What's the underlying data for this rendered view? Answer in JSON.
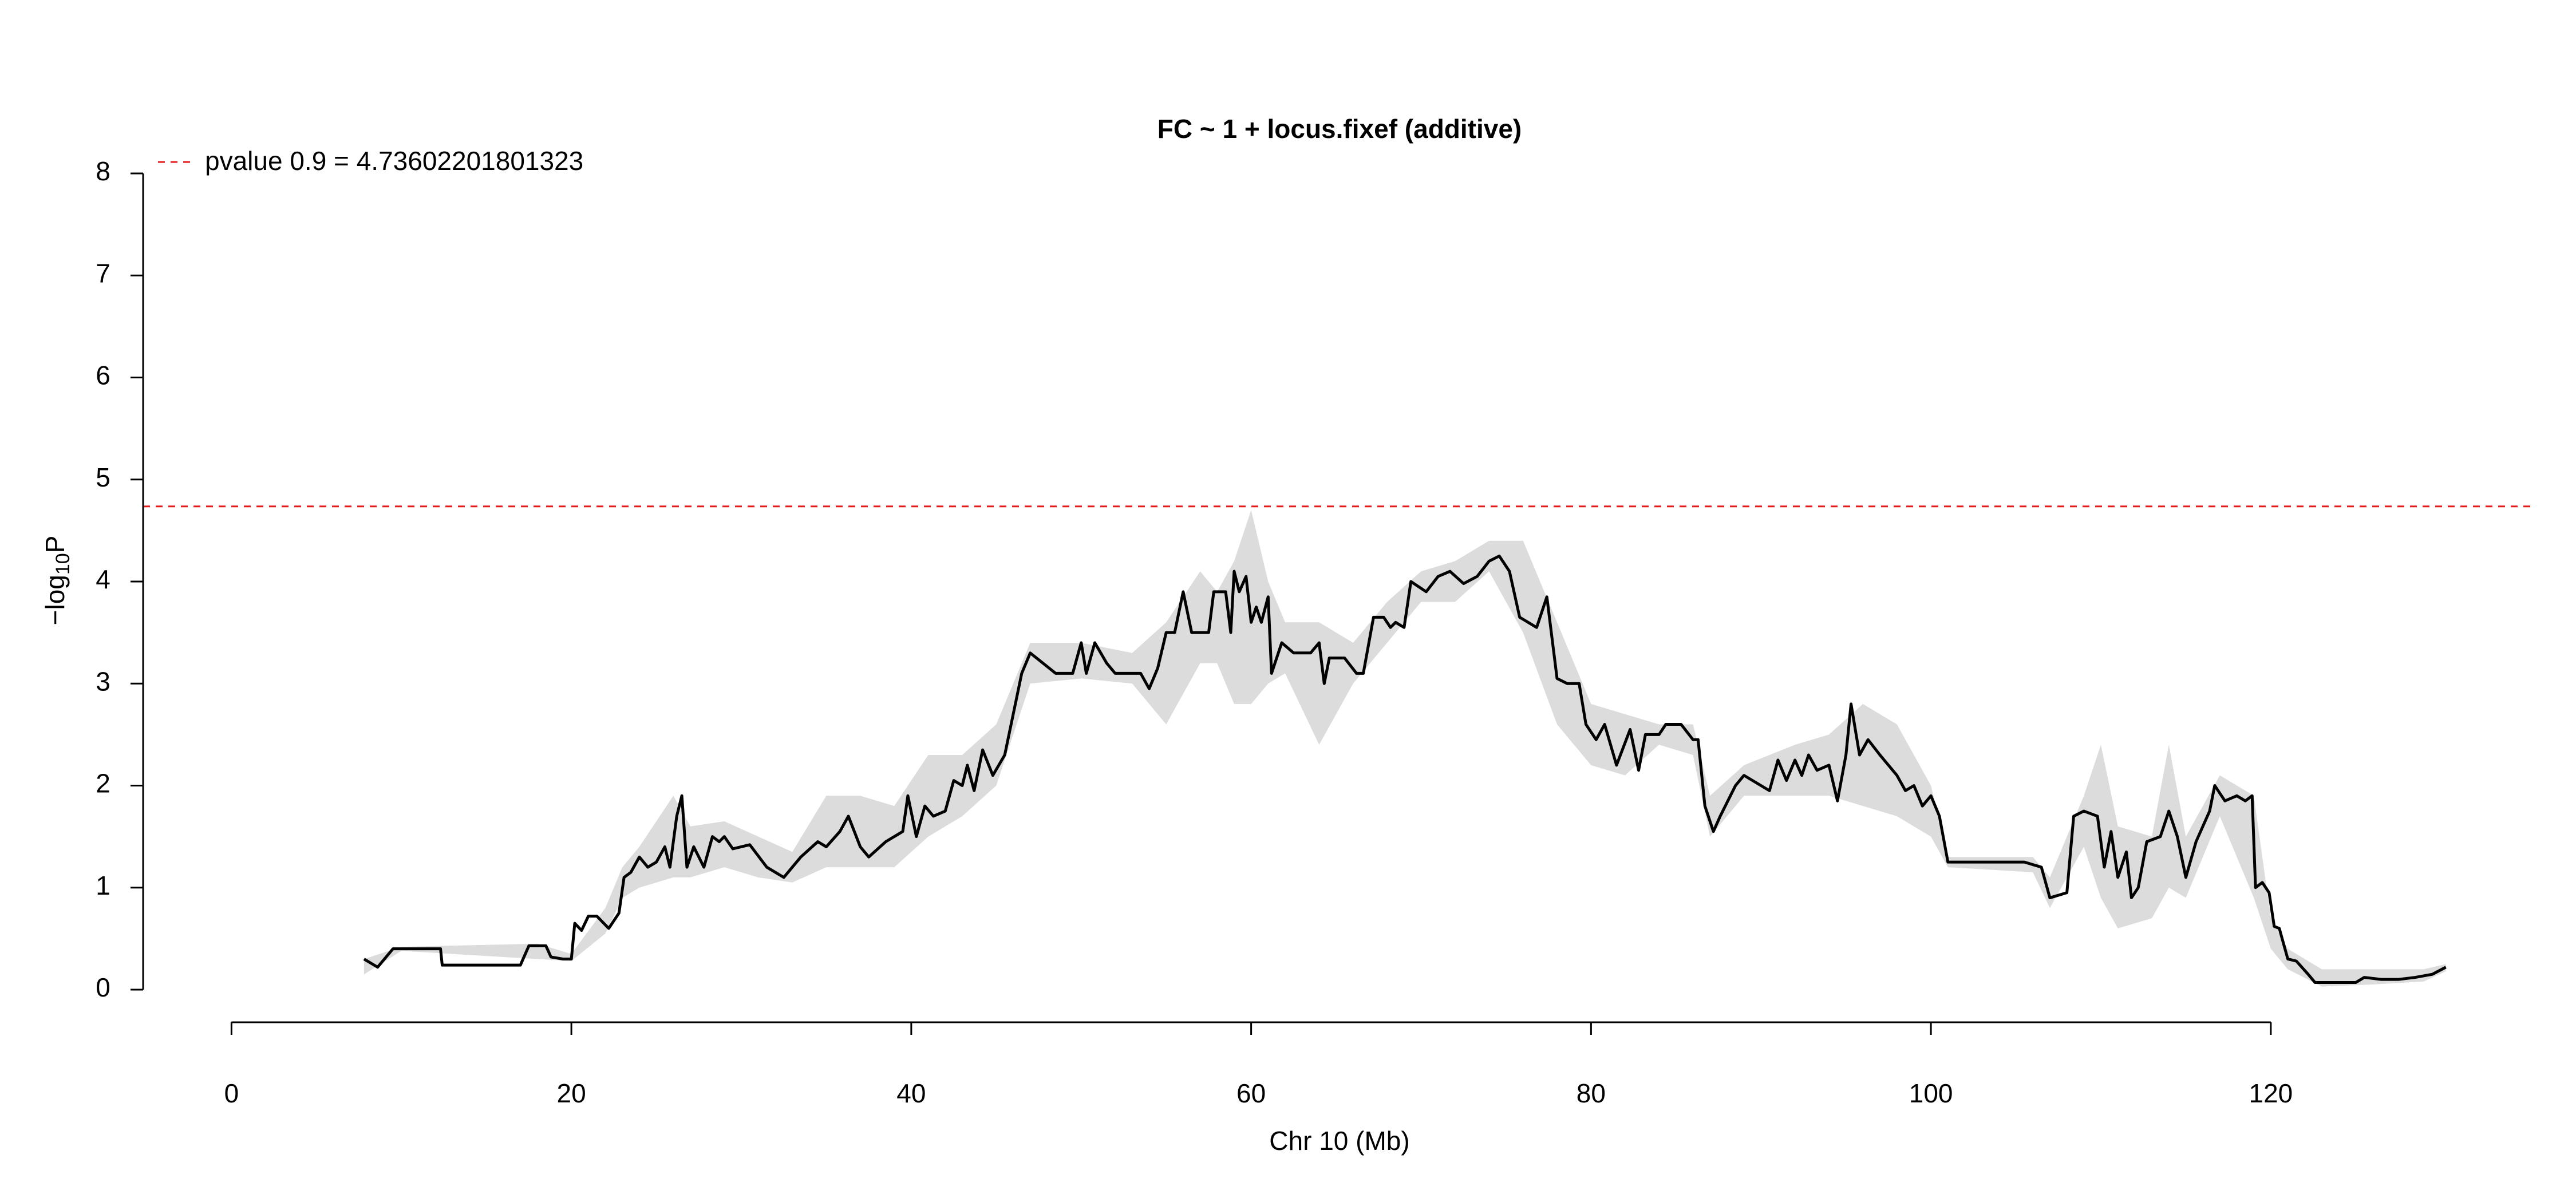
{
  "chart_data": {
    "type": "line",
    "title": "FC ~ 1 + locus.fixef (additive)",
    "x_label": "Chr 10 (Mb)",
    "y_label": [
      "−log",
      "10",
      "P"
    ],
    "xlim": [
      -5.2,
      135.6
    ],
    "ylim": [
      -0.32,
      8.32
    ],
    "xticks": [
      0,
      20,
      40,
      60,
      80,
      100,
      120
    ],
    "yticks": [
      0,
      1,
      2,
      3,
      4,
      5,
      6,
      7,
      8
    ],
    "threshold": {
      "label": "pvalue 0.9 = 4.73602201801323",
      "value": 4.73602201801323,
      "color": "#e41a1c"
    },
    "band": {
      "color": "#dcdcdc",
      "x": [
        7.8,
        10,
        18,
        20,
        22,
        23,
        24,
        26,
        27,
        29,
        31,
        33,
        35,
        37,
        39,
        41,
        43,
        45,
        47,
        50,
        53,
        55,
        57,
        58,
        59,
        60,
        61,
        62,
        64,
        66,
        68,
        70,
        72,
        74,
        76,
        78,
        80,
        82,
        84,
        86,
        87,
        89,
        92,
        94,
        96,
        98,
        100,
        101,
        106,
        107,
        109,
        110,
        111,
        113,
        114,
        115,
        117,
        119,
        120,
        121,
        123,
        126,
        129,
        130.3
      ],
      "lower": [
        0.15,
        0.38,
        0.3,
        0.28,
        0.55,
        0.9,
        1.0,
        1.1,
        1.1,
        1.2,
        1.1,
        1.05,
        1.2,
        1.2,
        1.2,
        1.5,
        1.7,
        2.0,
        3.0,
        3.05,
        3.0,
        2.6,
        3.2,
        3.2,
        2.8,
        2.8,
        3.0,
        3.1,
        2.4,
        3.0,
        3.4,
        3.8,
        3.8,
        4.1,
        3.5,
        2.6,
        2.2,
        2.1,
        2.4,
        2.3,
        1.5,
        1.9,
        1.9,
        1.9,
        1.8,
        1.7,
        1.5,
        1.2,
        1.15,
        0.8,
        1.4,
        0.9,
        0.6,
        0.7,
        1.0,
        0.9,
        1.7,
        0.9,
        0.4,
        0.2,
        0.03,
        0.05,
        0.08,
        0.18
      ],
      "upper": [
        0.3,
        0.42,
        0.45,
        0.35,
        0.8,
        1.2,
        1.4,
        1.9,
        1.6,
        1.65,
        1.5,
        1.35,
        1.9,
        1.9,
        1.8,
        2.3,
        2.3,
        2.6,
        3.4,
        3.4,
        3.3,
        3.6,
        4.1,
        3.9,
        4.2,
        4.7,
        4.0,
        3.6,
        3.6,
        3.4,
        3.8,
        4.1,
        4.2,
        4.4,
        4.4,
        3.6,
        2.8,
        2.7,
        2.6,
        2.6,
        1.9,
        2.2,
        2.4,
        2.5,
        2.8,
        2.6,
        2.0,
        1.3,
        1.3,
        1.1,
        1.9,
        2.4,
        1.6,
        1.5,
        2.4,
        1.5,
        2.1,
        1.9,
        0.7,
        0.4,
        0.2,
        0.2,
        0.2,
        0.25
      ]
    },
    "series": [
      {
        "color": "#000000",
        "x": [
          7.8,
          8.6,
          9.5,
          12.3,
          12.4,
          14,
          17,
          17.5,
          18.5,
          18.8,
          19.5,
          20,
          20.2,
          20.6,
          21,
          21.5,
          22.2,
          22.8,
          23.1,
          23.5,
          24,
          24.5,
          25,
          25.5,
          25.8,
          26.2,
          26.5,
          26.8,
          27.2,
          27.8,
          28.3,
          28.7,
          29,
          29.5,
          30.5,
          31.5,
          32.5,
          33.5,
          34.5,
          35,
          35.8,
          36.3,
          37,
          37.5,
          38.5,
          39.5,
          39.8,
          40.3,
          40.8,
          41.3,
          42,
          42.5,
          43,
          43.3,
          43.7,
          44.2,
          44.8,
          45.5,
          46.5,
          47,
          48.5,
          49.5,
          50,
          50.3,
          50.8,
          51.5,
          52,
          53.5,
          54,
          54.5,
          55,
          55.5,
          56,
          56.5,
          57.5,
          57.8,
          58.5,
          58.8,
          59,
          59.3,
          59.7,
          60,
          60.3,
          60.6,
          61,
          61.2,
          61.8,
          62.5,
          63.5,
          64,
          64.3,
          64.6,
          65.5,
          66.2,
          66.6,
          67.2,
          67.8,
          68.2,
          68.5,
          69,
          69.4,
          70.3,
          71,
          71.7,
          72.5,
          73.3,
          74,
          74.6,
          75.2,
          75.8,
          76.8,
          77.4,
          78,
          78.6,
          79.3,
          79.7,
          80.3,
          80.8,
          81.5,
          82.3,
          82.8,
          83.2,
          84,
          84.4,
          85.3,
          86,
          86.3,
          86.7,
          87.2,
          87.6,
          88.5,
          89,
          90.5,
          91,
          91.5,
          92,
          92.4,
          92.8,
          93.3,
          94,
          94.5,
          95,
          95.3,
          95.8,
          96.3,
          97,
          98,
          98.5,
          99,
          99.5,
          100,
          100.5,
          101,
          105.5,
          106.5,
          107,
          108,
          108.4,
          109,
          109.8,
          110.2,
          110.6,
          111,
          111.5,
          111.8,
          112.2,
          112.7,
          113.5,
          114,
          114.5,
          115,
          115.6,
          116.4,
          116.7,
          117.3,
          118,
          118.5,
          118.9,
          119.1,
          119.5,
          119.9,
          120.2,
          120.5,
          121,
          121.5,
          122.2,
          122.6,
          123.5,
          125,
          125.5,
          126.5,
          127.5,
          128.5,
          129.5,
          130.3
        ],
        "values": [
          0.3,
          0.22,
          0.4,
          0.4,
          0.24,
          0.24,
          0.24,
          0.43,
          0.43,
          0.32,
          0.3,
          0.3,
          0.65,
          0.58,
          0.72,
          0.72,
          0.6,
          0.75,
          1.1,
          1.15,
          1.3,
          1.2,
          1.25,
          1.4,
          1.2,
          1.7,
          1.9,
          1.2,
          1.4,
          1.2,
          1.5,
          1.45,
          1.5,
          1.38,
          1.42,
          1.2,
          1.1,
          1.3,
          1.45,
          1.4,
          1.55,
          1.7,
          1.4,
          1.3,
          1.45,
          1.55,
          1.9,
          1.5,
          1.8,
          1.7,
          1.75,
          2.05,
          2.0,
          2.2,
          1.95,
          2.35,
          2.1,
          2.3,
          3.1,
          3.3,
          3.1,
          3.1,
          3.4,
          3.1,
          3.4,
          3.2,
          3.1,
          3.1,
          2.95,
          3.15,
          3.5,
          3.5,
          3.9,
          3.5,
          3.5,
          3.9,
          3.9,
          3.5,
          4.1,
          3.9,
          4.05,
          3.6,
          3.75,
          3.6,
          3.85,
          3.1,
          3.4,
          3.3,
          3.3,
          3.4,
          3.0,
          3.25,
          3.25,
          3.1,
          3.1,
          3.65,
          3.65,
          3.55,
          3.6,
          3.55,
          4.0,
          3.9,
          4.05,
          4.1,
          3.98,
          4.05,
          4.2,
          4.25,
          4.1,
          3.65,
          3.55,
          3.85,
          3.05,
          3.0,
          3.0,
          2.6,
          2.45,
          2.6,
          2.2,
          2.55,
          2.15,
          2.5,
          2.5,
          2.6,
          2.6,
          2.45,
          2.45,
          1.8,
          1.55,
          1.7,
          2.0,
          2.1,
          1.95,
          2.25,
          2.05,
          2.25,
          2.1,
          2.3,
          2.15,
          2.2,
          1.85,
          2.3,
          2.8,
          2.3,
          2.45,
          2.3,
          2.1,
          1.95,
          2.0,
          1.8,
          1.9,
          1.7,
          1.25,
          1.25,
          1.2,
          0.9,
          0.95,
          1.7,
          1.75,
          1.7,
          1.2,
          1.55,
          1.1,
          1.35,
          0.9,
          1.0,
          1.45,
          1.5,
          1.75,
          1.5,
          1.1,
          1.45,
          1.75,
          2.0,
          1.85,
          1.9,
          1.85,
          1.9,
          1.0,
          1.05,
          0.95,
          0.62,
          0.6,
          0.3,
          0.28,
          0.15,
          0.07,
          0.07,
          0.07,
          0.12,
          0.1,
          0.1,
          0.12,
          0.15,
          0.22
        ]
      }
    ]
  }
}
